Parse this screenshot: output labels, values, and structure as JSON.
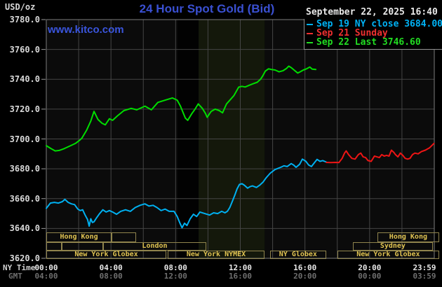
{
  "header": {
    "units_label": "USD/oz",
    "title": "24 Hour Spot Gold (Bid)",
    "watermark": "www.kitco.com",
    "timestamp": "September 22, 2025 16:40"
  },
  "legend": {
    "items": [
      {
        "label": "Sep 19 NY close 3684.00",
        "color": "#00b2f5"
      },
      {
        "label": "Sep 21 Sunday",
        "color": "#f03030"
      },
      {
        "label": "Sep 22 Last 3746.60",
        "color": "#22dd22"
      }
    ]
  },
  "axes": {
    "ny_row_label": "NY Time",
    "gmt_row_label": "GMT",
    "ny_ticks": [
      "00:00",
      "04:00",
      "08:00",
      "12:00",
      "16:00",
      "20:00",
      "23:59"
    ],
    "gmt_ticks": [
      "04:00",
      "08:00",
      "12:00",
      "16:00",
      "20:00",
      "00:00",
      "03:59"
    ],
    "tick_hours": [
      0,
      4,
      8,
      12,
      16,
      20,
      23.983
    ],
    "y_tick_labels": [
      "3780.0",
      "3760.0",
      "3740.0",
      "3720.0",
      "3700.0",
      "3680.0",
      "3660.0",
      "3640.0",
      "3620.0"
    ]
  },
  "sessions": {
    "rows": [
      {
        "row": 0,
        "start_hour": 0.0,
        "end_hour": 4.04,
        "label": "Hong Kong"
      },
      {
        "row": 0,
        "start_hour": 4.04,
        "end_hour": 5.55,
        "label": ""
      },
      {
        "row": 0,
        "start_hour": 20.48,
        "end_hour": 24.3,
        "label": "Hong Kong"
      },
      {
        "row": 1,
        "start_hour": 0.0,
        "end_hour": 0.95,
        "label": ""
      },
      {
        "row": 1,
        "start_hour": 0.95,
        "end_hour": 3.51,
        "label": ""
      },
      {
        "row": 1,
        "start_hour": 3.51,
        "end_hour": 9.9,
        "label": "London"
      },
      {
        "row": 1,
        "start_hour": 18.96,
        "end_hour": 23.91,
        "label": "Sydney"
      },
      {
        "row": 2,
        "start_hour": 0.0,
        "end_hour": 7.42,
        "label": "New York Globex"
      },
      {
        "row": 2,
        "start_hour": 7.51,
        "end_hour": 13.5,
        "label": "New York NYMEX"
      },
      {
        "row": 2,
        "start_hour": 13.84,
        "end_hour": 17.31,
        "label": "NY Globex"
      },
      {
        "row": 2,
        "start_hour": 18.01,
        "end_hour": 24.3,
        "label": "New York Globex"
      }
    ]
  },
  "chart_data": {
    "type": "line",
    "title": "24 Hour Spot Gold (Bid)",
    "ylabel": "USD/oz",
    "xlabel": "NY Time (hours 00:00-23:59)",
    "ylim": [
      3620,
      3780
    ],
    "y_tick_step": 20,
    "xlim_hours": [
      0,
      24
    ],
    "grid": true,
    "legend_position": "top-right",
    "background_color": "#0b0b0b",
    "gridline_color": "#454545",
    "frame_color": "#7c7c7c",
    "highlight_bands": [
      {
        "start_hour": 8.11,
        "end_hour": 9.42,
        "color": "#020202"
      },
      {
        "start_hour": 9.42,
        "end_hour": 13.5,
        "color": "#14180b"
      }
    ],
    "series": [
      {
        "name": "Sep 19 NY close 3684.00",
        "color": "#00b0f0",
        "close_value": 3684.0,
        "points": [
          [
            0,
            3653.5
          ],
          [
            0.25,
            3657
          ],
          [
            0.5,
            3657.5
          ],
          [
            0.75,
            3657
          ],
          [
            1.0,
            3658
          ],
          [
            1.15,
            3659.5
          ],
          [
            1.35,
            3657.5
          ],
          [
            1.55,
            3656.5
          ],
          [
            1.75,
            3656
          ],
          [
            1.95,
            3653
          ],
          [
            2.1,
            3652
          ],
          [
            2.25,
            3652.5
          ],
          [
            2.4,
            3649
          ],
          [
            2.55,
            3646
          ],
          [
            2.65,
            3641.6
          ],
          [
            2.75,
            3646.5
          ],
          [
            2.85,
            3644
          ],
          [
            2.95,
            3644.5
          ],
          [
            3.1,
            3647
          ],
          [
            3.3,
            3650
          ],
          [
            3.5,
            3652.5
          ],
          [
            3.7,
            3651
          ],
          [
            3.9,
            3652
          ],
          [
            4.1,
            3651
          ],
          [
            4.35,
            3649.5
          ],
          [
            4.6,
            3651.5
          ],
          [
            4.9,
            3652.5
          ],
          [
            5.2,
            3651.5
          ],
          [
            5.5,
            3654
          ],
          [
            5.8,
            3655.5
          ],
          [
            6.1,
            3656.5
          ],
          [
            6.35,
            3655
          ],
          [
            6.6,
            3655.5
          ],
          [
            6.85,
            3654
          ],
          [
            7.1,
            3652
          ],
          [
            7.35,
            3653
          ],
          [
            7.6,
            3651.5
          ],
          [
            7.9,
            3651.5
          ],
          [
            8.1,
            3648
          ],
          [
            8.25,
            3644
          ],
          [
            8.4,
            3640.5
          ],
          [
            8.55,
            3643.5
          ],
          [
            8.7,
            3642
          ],
          [
            8.9,
            3646.5
          ],
          [
            9.1,
            3649.5
          ],
          [
            9.3,
            3648
          ],
          [
            9.5,
            3651
          ],
          [
            9.8,
            3650
          ],
          [
            10.1,
            3649
          ],
          [
            10.35,
            3650.5
          ],
          [
            10.6,
            3650
          ],
          [
            10.85,
            3651.5
          ],
          [
            11.05,
            3650.5
          ],
          [
            11.2,
            3651.5
          ],
          [
            11.35,
            3654
          ],
          [
            11.5,
            3658
          ],
          [
            11.65,
            3662
          ],
          [
            11.8,
            3666.5
          ],
          [
            11.95,
            3669.5
          ],
          [
            12.1,
            3670
          ],
          [
            12.25,
            3669
          ],
          [
            12.45,
            3667
          ],
          [
            12.6,
            3668
          ],
          [
            12.75,
            3668.5
          ],
          [
            13.0,
            3667.5
          ],
          [
            13.2,
            3669
          ],
          [
            13.4,
            3671
          ],
          [
            13.6,
            3674
          ],
          [
            13.85,
            3677
          ],
          [
            14.15,
            3679.5
          ],
          [
            14.5,
            3681
          ],
          [
            14.7,
            3682
          ],
          [
            14.9,
            3681.5
          ],
          [
            15.15,
            3683.5
          ],
          [
            15.3,
            3682.5
          ],
          [
            15.45,
            3681
          ],
          [
            15.67,
            3683
          ],
          [
            15.84,
            3686.5
          ],
          [
            16.06,
            3685
          ],
          [
            16.23,
            3682.5
          ],
          [
            16.4,
            3681.5
          ],
          [
            16.58,
            3684
          ],
          [
            16.75,
            3686.3
          ],
          [
            16.93,
            3685
          ],
          [
            17.1,
            3685.5
          ],
          [
            17.32,
            3684.5
          ]
        ]
      },
      {
        "name": "Sep 21 Sunday",
        "color": "#ee1515",
        "points": [
          [
            17.32,
            3684.3
          ],
          [
            17.6,
            3684.2
          ],
          [
            17.9,
            3684.3
          ],
          [
            18.1,
            3684.2
          ],
          [
            18.3,
            3687
          ],
          [
            18.45,
            3690.5
          ],
          [
            18.55,
            3692
          ],
          [
            18.7,
            3689.5
          ],
          [
            18.9,
            3687
          ],
          [
            19.1,
            3686.5
          ],
          [
            19.3,
            3689.5
          ],
          [
            19.45,
            3690.5
          ],
          [
            19.6,
            3688
          ],
          [
            19.75,
            3687.5
          ],
          [
            19.9,
            3685.5
          ],
          [
            20.1,
            3685
          ],
          [
            20.3,
            3688.5
          ],
          [
            20.45,
            3688
          ],
          [
            20.6,
            3687.5
          ],
          [
            20.75,
            3689.5
          ],
          [
            20.9,
            3688.5
          ],
          [
            21.05,
            3689
          ],
          [
            21.2,
            3688.5
          ],
          [
            21.35,
            3692.5
          ],
          [
            21.5,
            3691
          ],
          [
            21.6,
            3689.5
          ],
          [
            21.75,
            3688
          ],
          [
            21.9,
            3690.5
          ],
          [
            22.05,
            3689
          ],
          [
            22.2,
            3687
          ],
          [
            22.35,
            3686.5
          ],
          [
            22.5,
            3687
          ],
          [
            22.65,
            3689.5
          ],
          [
            22.8,
            3690.5
          ],
          [
            23.0,
            3690
          ],
          [
            23.2,
            3691.5
          ],
          [
            23.45,
            3692.5
          ],
          [
            23.7,
            3694
          ],
          [
            23.98,
            3697
          ]
        ]
      },
      {
        "name": "Sep 22 Last 3746.60",
        "color": "#00dd00",
        "last_value": 3746.6,
        "points": [
          [
            0,
            3695.5
          ],
          [
            0.3,
            3693.5
          ],
          [
            0.55,
            3692
          ],
          [
            0.8,
            3692.3
          ],
          [
            1.1,
            3693.5
          ],
          [
            1.5,
            3695.5
          ],
          [
            1.8,
            3697
          ],
          [
            2.05,
            3699
          ],
          [
            2.2,
            3700.5
          ],
          [
            2.5,
            3706
          ],
          [
            2.75,
            3712
          ],
          [
            2.95,
            3718.5
          ],
          [
            3.2,
            3713
          ],
          [
            3.45,
            3710.5
          ],
          [
            3.65,
            3709.5
          ],
          [
            3.9,
            3713.5
          ],
          [
            4.1,
            3712.5
          ],
          [
            4.4,
            3715.5
          ],
          [
            4.8,
            3719
          ],
          [
            5.25,
            3720.5
          ],
          [
            5.6,
            3719.5
          ],
          [
            6.1,
            3722
          ],
          [
            6.5,
            3719.5
          ],
          [
            6.9,
            3724.5
          ],
          [
            7.35,
            3726
          ],
          [
            7.8,
            3727.5
          ],
          [
            8.1,
            3726
          ],
          [
            8.3,
            3722
          ],
          [
            8.6,
            3714
          ],
          [
            8.75,
            3712.5
          ],
          [
            9.0,
            3717
          ],
          [
            9.2,
            3720
          ],
          [
            9.4,
            3723.5
          ],
          [
            9.65,
            3720.5
          ],
          [
            9.85,
            3717
          ],
          [
            9.95,
            3714.5
          ],
          [
            10.2,
            3718.5
          ],
          [
            10.45,
            3720
          ],
          [
            10.7,
            3719
          ],
          [
            10.9,
            3717.5
          ],
          [
            11.15,
            3723.5
          ],
          [
            11.6,
            3729
          ],
          [
            11.9,
            3734.7
          ],
          [
            12.1,
            3735.3
          ],
          [
            12.3,
            3734.8
          ],
          [
            12.55,
            3736
          ],
          [
            12.8,
            3737
          ],
          [
            13.05,
            3738
          ],
          [
            13.25,
            3740
          ],
          [
            13.4,
            3742.5
          ],
          [
            13.55,
            3745.5
          ],
          [
            13.75,
            3747
          ],
          [
            13.95,
            3746.5
          ],
          [
            14.15,
            3746.2
          ],
          [
            14.4,
            3745
          ],
          [
            14.65,
            3745.8
          ],
          [
            14.85,
            3747.2
          ],
          [
            15.0,
            3748.8
          ],
          [
            15.15,
            3747.8
          ],
          [
            15.35,
            3746
          ],
          [
            15.55,
            3744.2
          ],
          [
            15.7,
            3745
          ],
          [
            15.9,
            3746.2
          ],
          [
            16.1,
            3747
          ],
          [
            16.3,
            3748.2
          ],
          [
            16.45,
            3746.8
          ],
          [
            16.67,
            3746.6
          ]
        ]
      }
    ]
  }
}
